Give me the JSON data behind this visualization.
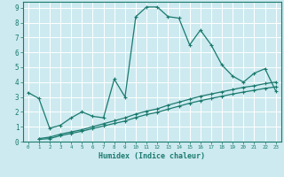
{
  "xlabel": "Humidex (Indice chaleur)",
  "bg_color": "#cdeaf0",
  "grid_color": "#ffffff",
  "line_color": "#1a7a6e",
  "xlim": [
    -0.5,
    23.5
  ],
  "ylim": [
    0,
    9.4
  ],
  "xticks": [
    0,
    1,
    2,
    3,
    4,
    5,
    6,
    7,
    8,
    9,
    10,
    11,
    12,
    13,
    14,
    15,
    16,
    17,
    18,
    19,
    20,
    21,
    22,
    23
  ],
  "yticks": [
    0,
    1,
    2,
    3,
    4,
    5,
    6,
    7,
    8,
    9
  ],
  "series1_x": [
    0,
    1,
    2,
    3,
    4,
    5,
    6,
    7,
    8,
    9,
    10,
    11,
    12,
    13,
    14,
    15,
    16,
    17,
    18,
    19,
    20,
    21,
    22,
    23
  ],
  "series1_y": [
    3.3,
    2.9,
    0.9,
    1.1,
    1.6,
    2.0,
    1.7,
    1.6,
    4.2,
    3.0,
    8.4,
    9.05,
    9.05,
    8.4,
    8.3,
    6.5,
    7.5,
    6.5,
    5.15,
    4.4,
    4.0,
    4.6,
    4.9,
    3.4
  ],
  "series2_x": [
    1,
    2,
    3,
    4,
    5,
    6,
    7,
    8,
    9,
    10,
    11,
    12,
    13,
    14,
    15,
    16,
    17,
    18,
    19,
    20,
    21,
    22,
    23
  ],
  "series2_y": [
    0.2,
    0.3,
    0.5,
    0.65,
    0.8,
    1.0,
    1.2,
    1.4,
    1.6,
    1.85,
    2.05,
    2.2,
    2.45,
    2.65,
    2.85,
    3.05,
    3.2,
    3.35,
    3.5,
    3.65,
    3.75,
    3.9,
    4.0
  ],
  "series3_x": [
    1,
    2,
    3,
    4,
    5,
    6,
    7,
    8,
    9,
    10,
    11,
    12,
    13,
    14,
    15,
    16,
    17,
    18,
    19,
    20,
    21,
    22,
    23
  ],
  "series3_y": [
    0.15,
    0.2,
    0.4,
    0.55,
    0.7,
    0.88,
    1.05,
    1.22,
    1.38,
    1.62,
    1.82,
    1.97,
    2.18,
    2.38,
    2.58,
    2.75,
    2.9,
    3.05,
    3.2,
    3.33,
    3.45,
    3.58,
    3.68
  ]
}
